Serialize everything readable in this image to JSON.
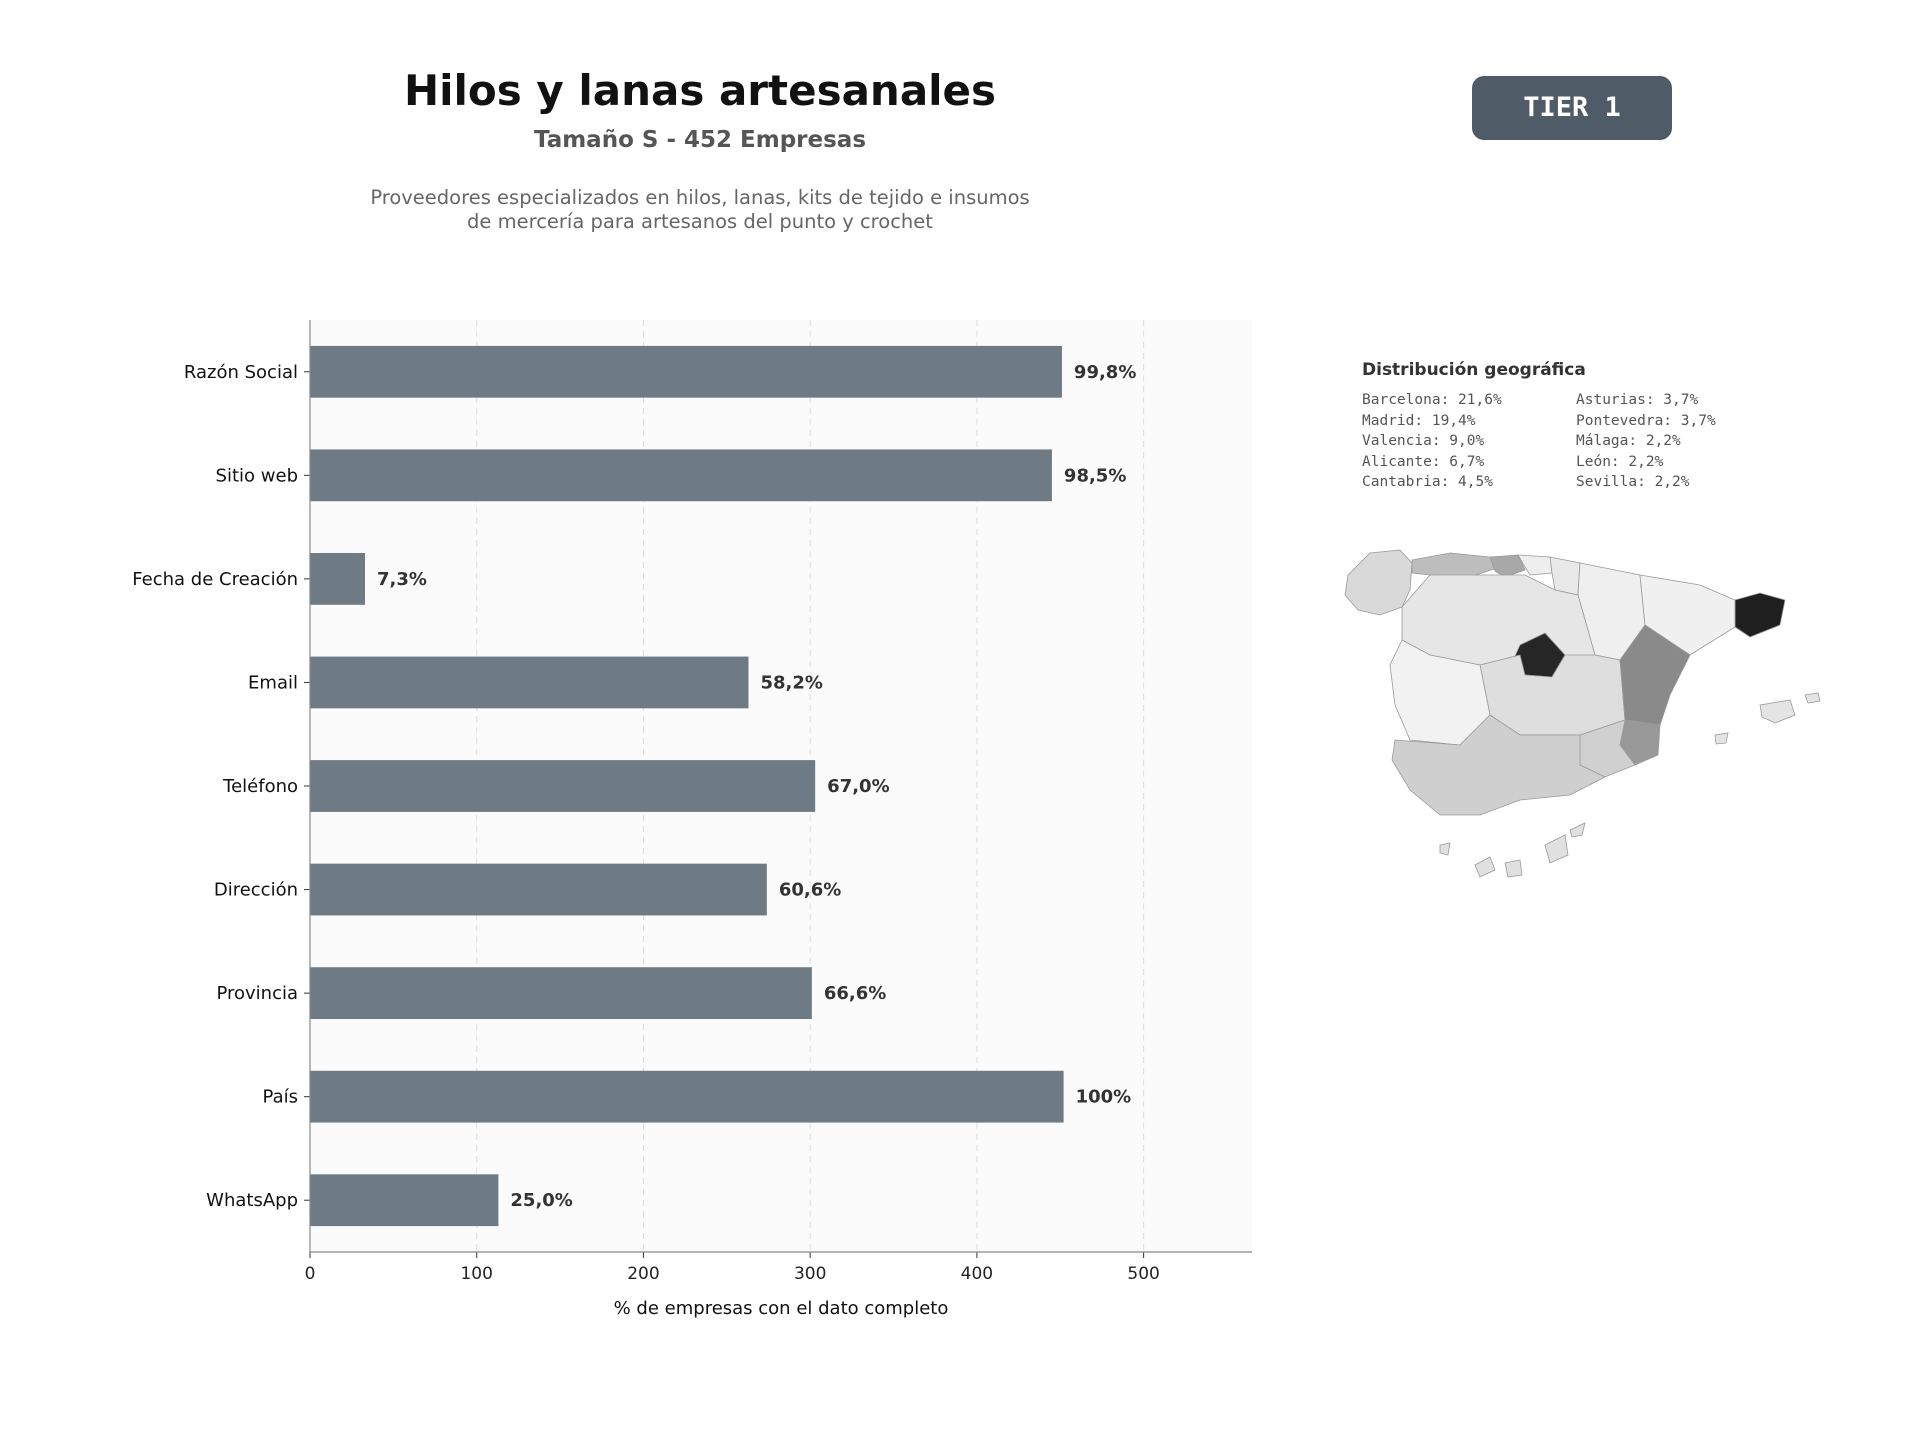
{
  "header": {
    "title": "Hilos y lanas artesanales",
    "subtitle": "Tamaño S - 452 Empresas",
    "description_lines": [
      "Proveedores especializados en hilos, lanas, kits de tejido e insumos",
      "de mercería para artesanos del punto y crochet"
    ],
    "tier_badge": "TIER 1"
  },
  "chart_data": {
    "type": "bar",
    "orientation": "horizontal",
    "categories": [
      "Razón Social",
      "Sitio web",
      "Fecha de Creación",
      "Email",
      "Teléfono",
      "Dirección",
      "Provincia",
      "País",
      "WhatsApp"
    ],
    "values": [
      451,
      445,
      33,
      263,
      303,
      274,
      301,
      452,
      113
    ],
    "data_labels": [
      "99,8%",
      "98,5%",
      "7,3%",
      "58,2%",
      "67,0%",
      "60,6%",
      "66,6%",
      "100%",
      "25,0%"
    ],
    "xlabel": "% de empresas con el dato completo",
    "ylabel": "",
    "xlim": [
      0,
      565
    ],
    "xticks": [
      0,
      100,
      200,
      300,
      400,
      500
    ],
    "grid": "vertical dashed",
    "bar_color": "#6e7a84",
    "panel_background": "#fbfbfb"
  },
  "geo": {
    "title": "Distribución geográfica",
    "left_column": [
      "Barcelona: 21,6%",
      "Madrid: 19,4%",
      "Valencia: 9,0%",
      "Alicante: 6,7%",
      "Cantabria: 4,5%"
    ],
    "right_column": [
      "Asturias: 3,7%",
      "Pontevedra: 3,7%",
      "Málaga: 2,2%",
      "León: 2,2%",
      "Sevilla: 2,2%"
    ]
  }
}
